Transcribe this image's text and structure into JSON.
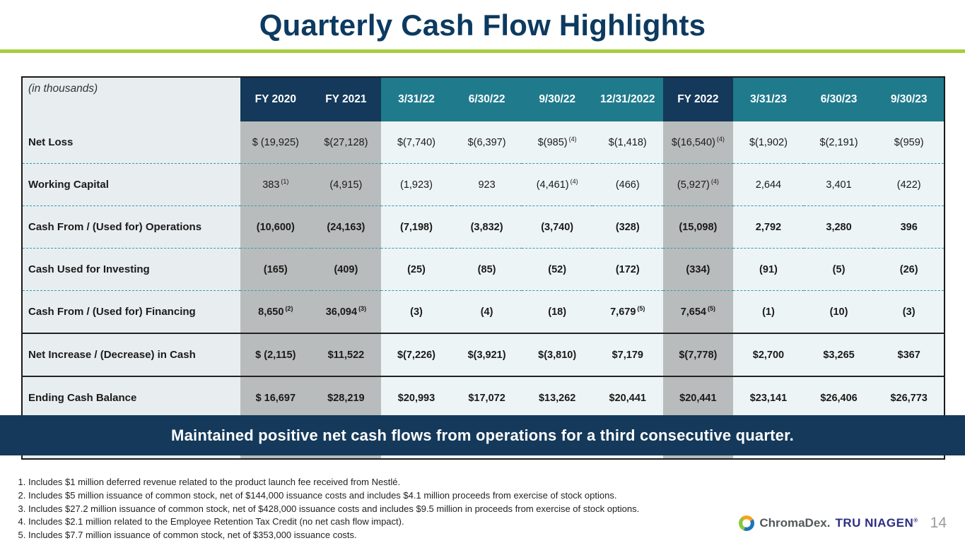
{
  "title": "Quarterly Cash Flow Highlights",
  "colors": {
    "navy": "#14395b",
    "teal": "#1f7a8c",
    "green_accent": "#a6ce39",
    "column_gray": "#b9bcbc",
    "column_light": "#edf4f6",
    "label_bg": "#e8eef0",
    "dashed_line": "#2f9db2",
    "title_text": "#0c3a60"
  },
  "table": {
    "corner_label": "(in thousands)",
    "columns": [
      {
        "label": "FY 2020",
        "style": "navy"
      },
      {
        "label": "FY 2021",
        "style": "navy"
      },
      {
        "label": "3/31/22",
        "style": "teal"
      },
      {
        "label": "6/30/22",
        "style": "teal"
      },
      {
        "label": "9/30/22",
        "style": "teal"
      },
      {
        "label": "12/31/2022",
        "style": "teal"
      },
      {
        "label": "FY 2022",
        "style": "navy"
      },
      {
        "label": "3/31/23",
        "style": "teal"
      },
      {
        "label": "6/30/23",
        "style": "teal"
      },
      {
        "label": "9/30/23",
        "style": "teal"
      }
    ],
    "rows": [
      {
        "label": "Net Loss",
        "bold": false,
        "separator": "dashed",
        "values": [
          "$ (19,925)",
          "$(27,128)",
          "$(7,740)",
          "$(6,397)",
          "$(985)",
          "$(1,418)",
          "$(16,540)",
          "$(1,902)",
          "$(2,191)",
          "$(959)"
        ],
        "sups": [
          "",
          "",
          "",
          "",
          "(4)",
          "",
          "(4)",
          "",
          "",
          ""
        ]
      },
      {
        "label": "Working Capital",
        "bold": false,
        "separator": "dashed",
        "values": [
          "383",
          "(4,915)",
          "(1,923)",
          "923",
          "(4,461)",
          "(466)",
          "(5,927)",
          "2,644",
          "3,401",
          "(422)"
        ],
        "sups": [
          "(1)",
          "",
          "",
          "",
          "(4)",
          "",
          "(4)",
          "",
          "",
          ""
        ]
      },
      {
        "label": "Cash From / (Used for) Operations",
        "bold": true,
        "separator": "dashed",
        "values": [
          "(10,600)",
          "(24,163)",
          "(7,198)",
          "(3,832)",
          "(3,740)",
          "(328)",
          "(15,098)",
          "2,792",
          "3,280",
          "396"
        ],
        "sups": [
          "",
          "",
          "",
          "",
          "",
          "",
          "",
          "",
          "",
          ""
        ]
      },
      {
        "label": "Cash Used for Investing",
        "bold": true,
        "separator": "dashed",
        "values": [
          "(165)",
          "(409)",
          "(25)",
          "(85)",
          "(52)",
          "(172)",
          "(334)",
          "(91)",
          "(5)",
          "(26)"
        ],
        "sups": [
          "",
          "",
          "",
          "",
          "",
          "",
          "",
          "",
          "",
          ""
        ]
      },
      {
        "label": "Cash From / (Used for) Financing",
        "bold": true,
        "separator": "solid",
        "values": [
          "8,650",
          "36,094",
          "(3)",
          "(4)",
          "(18)",
          "7,679",
          "7,654",
          "(1)",
          "(10)",
          "(3)"
        ],
        "sups": [
          "(2)",
          "(3)",
          "",
          "",
          "",
          "(5)",
          "(5)",
          "",
          "",
          ""
        ]
      },
      {
        "label": "Net Increase / (Decrease) in Cash",
        "bold": true,
        "separator": "solid",
        "values": [
          "$ (2,115)",
          "$11,522",
          "$(7,226)",
          "$(3,921)",
          "$(3,810)",
          "$7,179",
          "$(7,778)",
          "$2,700",
          "$3,265",
          "$367"
        ],
        "sups": [
          "",
          "",
          "",
          "",
          "",
          "",
          "",
          "",
          "",
          ""
        ]
      },
      {
        "label": "Ending Cash Balance",
        "bold": true,
        "separator": "dashed",
        "values": [
          "$ 16,697",
          "$28,219",
          "$20,993",
          "$17,072",
          "$13,262",
          "$20,441",
          "$20,441",
          "$23,141",
          "$26,406",
          "$26,773"
        ],
        "sups": [
          "",
          "",
          "",
          "",
          "",
          "",
          "",
          "",
          "",
          ""
        ]
      }
    ]
  },
  "banner": {
    "text": "Maintained positive net cash flows from operations for a third consecutive quarter."
  },
  "footnotes": [
    "Includes $1 million deferred revenue related to the product launch fee received from Nestlé.",
    "Includes $5 million issuance of common stock, net of $144,000 issuance costs and includes $4.1 million proceeds from exercise of stock options.",
    "Includes $27.2 million issuance of common stock, net of $428,000 issuance costs and includes $9.5 million in proceeds from exercise of stock options.",
    "Includes $2.1 million related to the Employee Retention Tax Credit (no net cash flow impact).",
    "Includes $7.7 million issuance of common stock, net of $353,000 issuance costs."
  ],
  "footer": {
    "brand_chromadex": "ChromaDex.",
    "brand_tru_niagen": "TRU NIAGEN",
    "trademark": "®",
    "page_number": "14"
  }
}
